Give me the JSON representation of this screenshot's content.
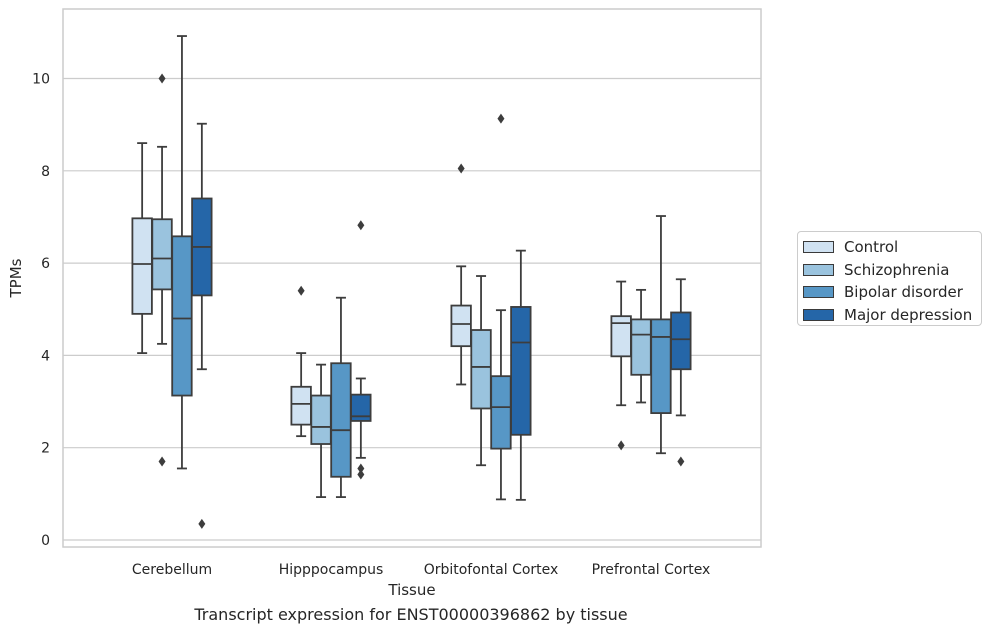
{
  "chart_data": {
    "type": "boxplot",
    "title": "Transcript expression for ENST00000396862 by tissue",
    "xlabel": "Tissue",
    "ylabel": "TPMs",
    "ylim": [
      -0.15,
      11.5
    ],
    "yticks": [
      0,
      2,
      4,
      6,
      8,
      10
    ],
    "grid": "horizontal",
    "legend_position": "right",
    "categories": [
      "Cerebellum",
      "Hipppocampus",
      "Orbitofontal Cortex",
      "Prefrontal Cortex"
    ],
    "series": [
      {
        "name": "Control",
        "color": "#d0e2f2",
        "boxes": [
          {
            "whisker_low": 4.05,
            "q1": 4.9,
            "median": 5.98,
            "q3": 6.97,
            "whisker_high": 8.6,
            "outliers": []
          },
          {
            "whisker_low": 2.25,
            "q1": 2.5,
            "median": 2.95,
            "q3": 3.32,
            "whisker_high": 4.05,
            "outliers": [
              5.4
            ]
          },
          {
            "whisker_low": 3.37,
            "q1": 4.2,
            "median": 4.68,
            "q3": 5.08,
            "whisker_high": 5.93,
            "outliers": [
              8.05
            ]
          },
          {
            "whisker_low": 2.92,
            "q1": 3.98,
            "median": 4.7,
            "q3": 4.85,
            "whisker_high": 5.6,
            "outliers": [
              2.05
            ]
          }
        ]
      },
      {
        "name": "Schizophrenia",
        "color": "#9ac3de",
        "boxes": [
          {
            "whisker_low": 4.25,
            "q1": 5.43,
            "median": 6.1,
            "q3": 6.95,
            "whisker_high": 8.52,
            "outliers": [
              10.0,
              1.7
            ]
          },
          {
            "whisker_low": 0.93,
            "q1": 2.08,
            "median": 2.45,
            "q3": 3.13,
            "whisker_high": 3.8,
            "outliers": []
          },
          {
            "whisker_low": 1.62,
            "q1": 2.85,
            "median": 3.75,
            "q3": 4.55,
            "whisker_high": 5.72,
            "outliers": []
          },
          {
            "whisker_low": 2.98,
            "q1": 3.58,
            "median": 4.45,
            "q3": 4.78,
            "whisker_high": 5.42,
            "outliers": []
          }
        ]
      },
      {
        "name": "Bipolar disorder",
        "color": "#5797c6",
        "boxes": [
          {
            "whisker_low": 1.55,
            "q1": 3.13,
            "median": 4.8,
            "q3": 6.58,
            "whisker_high": 10.92,
            "outliers": []
          },
          {
            "whisker_low": 0.93,
            "q1": 1.37,
            "median": 2.38,
            "q3": 3.83,
            "whisker_high": 5.25,
            "outliers": []
          },
          {
            "whisker_low": 0.88,
            "q1": 1.98,
            "median": 2.88,
            "q3": 3.55,
            "whisker_high": 4.98,
            "outliers": [
              9.13
            ]
          },
          {
            "whisker_low": 1.88,
            "q1": 2.75,
            "median": 4.4,
            "q3": 4.78,
            "whisker_high": 7.02,
            "outliers": []
          }
        ]
      },
      {
        "name": "Major depression",
        "color": "#2566a8",
        "boxes": [
          {
            "whisker_low": 3.7,
            "q1": 5.3,
            "median": 6.35,
            "q3": 7.4,
            "whisker_high": 9.02,
            "outliers": [
              0.35
            ]
          },
          {
            "whisker_low": 1.78,
            "q1": 2.58,
            "median": 2.68,
            "q3": 3.15,
            "whisker_high": 3.5,
            "outliers": [
              6.82,
              1.55,
              1.42
            ]
          },
          {
            "whisker_low": 0.87,
            "q1": 2.28,
            "median": 4.28,
            "q3": 5.05,
            "whisker_high": 6.27,
            "outliers": []
          },
          {
            "whisker_low": 2.7,
            "q1": 3.7,
            "median": 4.35,
            "q3": 4.93,
            "whisker_high": 5.65,
            "outliers": [
              1.7
            ]
          }
        ]
      }
    ]
  }
}
